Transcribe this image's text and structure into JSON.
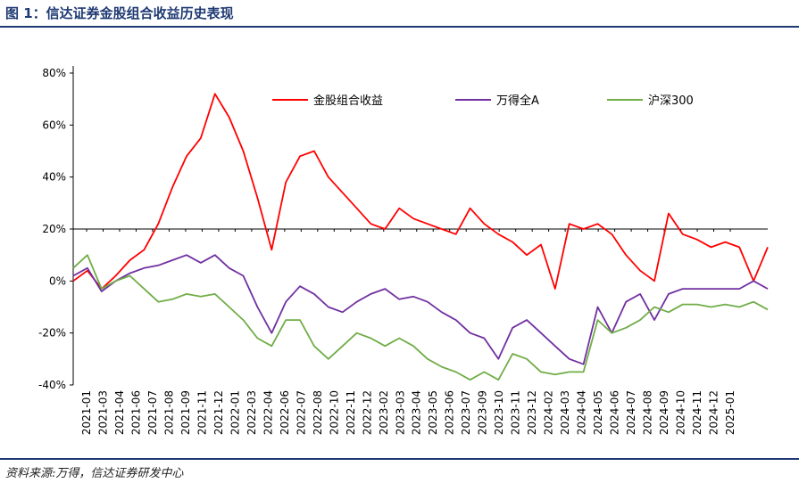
{
  "figure": {
    "title": "图 1：信达证券金股组合收益历史表现",
    "source": "资料来源:万得，信达证券研发中心"
  },
  "chart_data": {
    "type": "line",
    "title": "图 1：信达证券金股组合收益历史表现",
    "xlabel": "",
    "ylabel": "",
    "ylim": [
      -40,
      80
    ],
    "y_ticks": [
      -40,
      -20,
      0,
      20,
      40,
      60,
      80
    ],
    "y_tick_labels": [
      "-40%",
      "-20%",
      "0%",
      "20%",
      "40%",
      "60%",
      "80%"
    ],
    "x_ticks": [
      "2021-01",
      "2021-03",
      "2021-04",
      "2021-06",
      "2021-07",
      "2021-08",
      "2021-09",
      "2021-11",
      "2021-12",
      "2022-01",
      "2022-03",
      "2022-04",
      "2022-06",
      "2022-07",
      "2022-08",
      "2022-10",
      "2022-11",
      "2022-12",
      "2023-02",
      "2023-03",
      "2023-04",
      "2023-05",
      "2023-06",
      "2023-07",
      "2023-09",
      "2023-10",
      "2023-11",
      "2023-12",
      "2024-02",
      "2024-03",
      "2024-04",
      "2024-05",
      "2024-06",
      "2024-07",
      "2024-08",
      "2024-09",
      "2024-10",
      "2024-11",
      "2024-12",
      "2025-01"
    ],
    "grid": false,
    "legend_position": "top-right",
    "series": [
      {
        "name": "金股组合收益",
        "color": "#ff0000",
        "x": [
          0,
          1,
          2,
          3,
          4,
          5,
          6,
          7,
          8,
          9,
          10,
          11,
          12,
          13,
          14,
          15,
          16,
          17,
          18,
          19,
          20,
          21,
          22,
          23,
          24,
          25,
          26,
          27,
          28,
          29,
          30,
          31,
          32,
          33,
          34,
          35,
          36,
          37,
          38,
          39,
          40,
          41,
          42,
          43,
          44,
          45,
          46,
          47,
          48,
          49
        ],
        "values": [
          0,
          4,
          -3,
          2,
          8,
          12,
          22,
          36,
          48,
          55,
          72,
          63,
          50,
          32,
          12,
          38,
          48,
          50,
          40,
          34,
          28,
          22,
          20,
          28,
          24,
          22,
          20,
          18,
          28,
          22,
          18,
          15,
          10,
          14,
          -3,
          22,
          20,
          22,
          18,
          10,
          4,
          0,
          26,
          18,
          16,
          13,
          15,
          13,
          0,
          13
        ]
      },
      {
        "name": "万得全A",
        "color": "#7030a0",
        "x": [
          0,
          1,
          2,
          3,
          4,
          5,
          6,
          7,
          8,
          9,
          10,
          11,
          12,
          13,
          14,
          15,
          16,
          17,
          18,
          19,
          20,
          21,
          22,
          23,
          24,
          25,
          26,
          27,
          28,
          29,
          30,
          31,
          32,
          33,
          34,
          35,
          36,
          37,
          38,
          39,
          40,
          41,
          42,
          43,
          44,
          45,
          46,
          47,
          48,
          49
        ],
        "values": [
          2,
          5,
          -4,
          0,
          3,
          5,
          6,
          8,
          10,
          7,
          10,
          5,
          2,
          -10,
          -20,
          -8,
          -2,
          -5,
          -10,
          -12,
          -8,
          -5,
          -3,
          -7,
          -6,
          -8,
          -12,
          -15,
          -20,
          -22,
          -30,
          -18,
          -15,
          -20,
          -25,
          -30,
          -32,
          -10,
          -20,
          -8,
          -5,
          -15,
          -5,
          -3,
          -3,
          -3,
          -3,
          -3,
          0,
          -3
        ]
      },
      {
        "name": "沪深300",
        "color": "#70ad47",
        "x": [
          0,
          1,
          2,
          3,
          4,
          5,
          6,
          7,
          8,
          9,
          10,
          11,
          12,
          13,
          14,
          15,
          16,
          17,
          18,
          19,
          20,
          21,
          22,
          23,
          24,
          25,
          26,
          27,
          28,
          29,
          30,
          31,
          32,
          33,
          34,
          35,
          36,
          37,
          38,
          39,
          40,
          41,
          42,
          43,
          44,
          45,
          46,
          47,
          48,
          49
        ],
        "values": [
          5,
          10,
          -3,
          0,
          2,
          -3,
          -8,
          -7,
          -5,
          -6,
          -5,
          -10,
          -15,
          -22,
          -25,
          -15,
          -15,
          -25,
          -30,
          -25,
          -20,
          -22,
          -25,
          -22,
          -25,
          -30,
          -33,
          -35,
          -38,
          -35,
          -38,
          -28,
          -30,
          -35,
          -36,
          -35,
          -35,
          -15,
          -20,
          -18,
          -15,
          -10,
          -12,
          -9,
          -9,
          -10,
          -9,
          -10,
          -8,
          -11
        ]
      }
    ]
  }
}
